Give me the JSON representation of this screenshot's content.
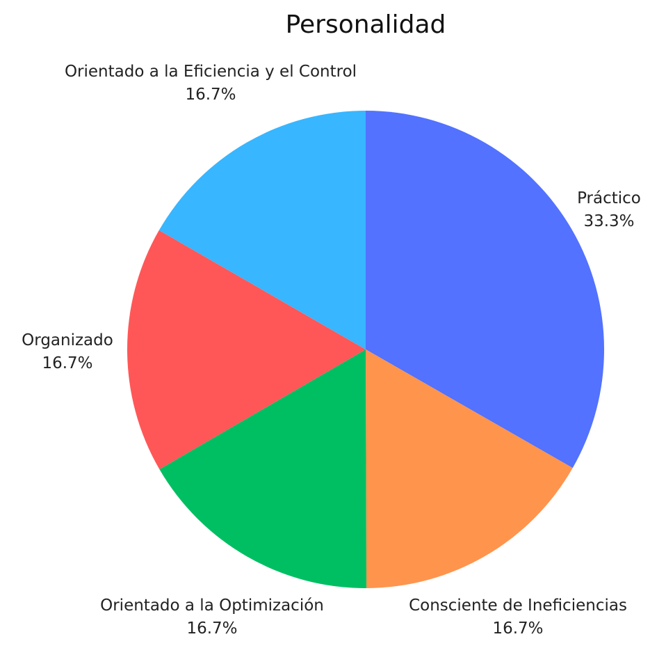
{
  "chart_data": {
    "type": "pie",
    "title": "Personalidad",
    "slices": [
      {
        "label": "Práctico",
        "value": 33.3,
        "display": "33.3%",
        "color": "#5272FF"
      },
      {
        "label": "Consciente de Ineficiencias",
        "value": 16.7,
        "display": "16.7%",
        "color": "#FF944D"
      },
      {
        "label": "Orientado a la Optimización",
        "value": 16.7,
        "display": "16.7%",
        "color": "#00BF63"
      },
      {
        "label": "Organizado",
        "value": 16.7,
        "display": "16.7%",
        "color": "#FF5757"
      },
      {
        "label": "Orientado a la Eficiencia y el Control",
        "value": 16.7,
        "display": "16.7%",
        "color": "#38B6FF"
      }
    ],
    "start_angle": "12 o'clock",
    "direction": "clockwise",
    "legend": "none"
  }
}
